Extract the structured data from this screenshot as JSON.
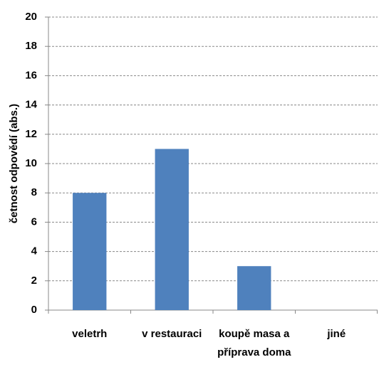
{
  "chart_data": {
    "type": "bar",
    "y_label": "četnost odpovědí (abs.)",
    "categories": [
      "veletrh",
      "v restauraci",
      "koupě masa a\npříprava doma",
      "jiné"
    ],
    "values": [
      8,
      11,
      3,
      0
    ],
    "color": "#4f81bd",
    "ylim": [
      0,
      20
    ],
    "yticks": [
      0,
      2,
      4,
      6,
      8,
      10,
      12,
      14,
      16,
      18,
      20
    ],
    "grid": true
  }
}
